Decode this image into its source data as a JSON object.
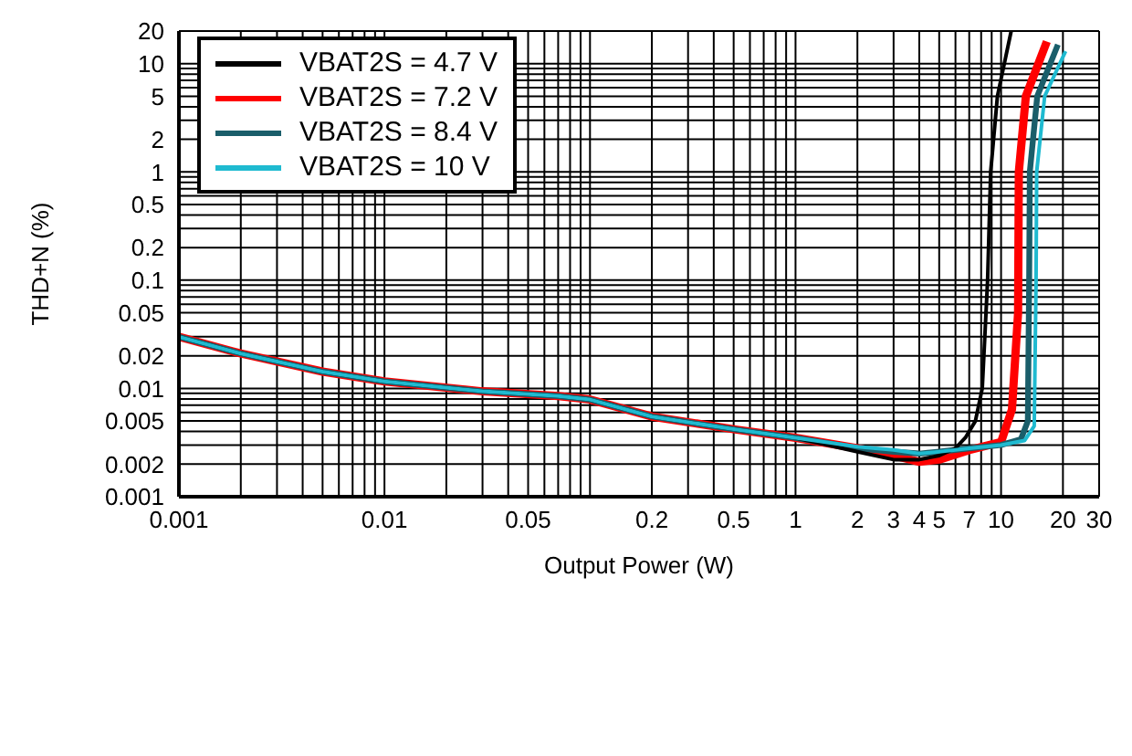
{
  "chart_data": {
    "type": "line",
    "xlabel": "Output Power (W)",
    "ylabel": "THD+N (%)",
    "log": "xy",
    "grid": true,
    "legend": "top left",
    "xlim": [
      0.001,
      30
    ],
    "xticks": [
      0.001,
      {
        "value": 0.002,
        "label": null
      },
      {
        "value": 0.003,
        "label": null
      },
      {
        "value": 0.004,
        "label": null
      },
      {
        "value": 0.005,
        "label": null
      },
      {
        "value": 0.006,
        "label": null
      },
      {
        "value": 0.007,
        "label": null
      },
      {
        "value": 0.008,
        "label": null
      },
      {
        "value": 0.009,
        "label": null
      },
      0.01,
      {
        "value": 0.02,
        "label": null
      },
      {
        "value": 0.03,
        "label": null
      },
      {
        "value": 0.04,
        "label": null
      },
      0.05,
      {
        "value": 0.06,
        "label": null
      },
      {
        "value": 0.07,
        "label": null
      },
      {
        "value": 0.08,
        "label": null
      },
      {
        "value": 0.09,
        "label": null
      },
      {
        "value": 0.1,
        "label": null
      },
      0.2,
      {
        "value": 0.3,
        "label": null
      },
      {
        "value": 0.4,
        "label": null
      },
      0.5,
      {
        "value": 0.6,
        "label": null
      },
      {
        "value": 0.7,
        "label": null
      },
      {
        "value": 0.8,
        "label": null
      },
      {
        "value": 0.9,
        "label": null
      },
      1,
      2,
      3,
      4,
      5,
      {
        "value": 6,
        "label": null
      },
      7,
      {
        "value": 8,
        "label": null
      },
      {
        "value": 9,
        "label": null
      },
      10,
      20,
      30
    ],
    "ylim": [
      0.001,
      20
    ],
    "yticks": [
      0.001,
      0.002,
      {
        "value": 0.003,
        "label": null
      },
      {
        "value": 0.004,
        "label": null
      },
      0.005,
      {
        "value": 0.006,
        "label": null
      },
      {
        "value": 0.007,
        "label": null
      },
      {
        "value": 0.008,
        "label": null
      },
      {
        "value": 0.009,
        "label": null
      },
      0.01,
      0.02,
      {
        "value": 0.03,
        "label": null
      },
      {
        "value": 0.04,
        "label": null
      },
      0.05,
      {
        "value": 0.06,
        "label": null
      },
      {
        "value": 0.07,
        "label": null
      },
      {
        "value": 0.08,
        "label": null
      },
      {
        "value": 0.09,
        "label": null
      },
      0.1,
      0.2,
      {
        "value": 0.3,
        "label": null
      },
      {
        "value": 0.4,
        "label": null
      },
      0.5,
      {
        "value": 0.6,
        "label": null
      },
      {
        "value": 0.7,
        "label": null
      },
      {
        "value": 0.8,
        "label": null
      },
      {
        "value": 0.9,
        "label": null
      },
      1,
      2,
      {
        "value": 3,
        "label": null
      },
      {
        "value": 4,
        "label": null
      },
      5,
      {
        "value": 6,
        "label": null
      },
      {
        "value": 7,
        "label": null
      },
      {
        "value": 8,
        "label": null
      },
      {
        "value": 9,
        "label": null
      },
      10,
      20
    ],
    "series": [
      {
        "name": "VBAT2S = 4.7 V",
        "color": "#000000",
        "x": [
          0.001,
          0.002,
          0.005,
          0.01,
          0.03,
          0.07,
          0.1,
          0.2,
          0.5,
          1,
          2,
          3,
          4,
          5,
          6,
          6.7,
          7.5,
          8.1,
          8.6,
          8.9,
          9.6,
          11.2
        ],
        "values": [
          0.03,
          0.021,
          0.0143,
          0.0116,
          0.0094,
          0.0085,
          0.0079,
          0.0055,
          0.0042,
          0.0035,
          0.0026,
          0.0022,
          0.0022,
          0.0024,
          0.0028,
          0.0035,
          0.005,
          0.01,
          0.1,
          1,
          5,
          20
        ]
      },
      {
        "name": "VBAT2S = 7.2 V",
        "color": "#ff0000",
        "x": [
          0.001,
          0.002,
          0.005,
          0.01,
          0.03,
          0.07,
          0.1,
          0.2,
          0.5,
          1,
          2,
          3,
          4,
          5,
          7,
          10,
          11.3,
          12.1,
          12.2,
          13.2,
          16.7
        ],
        "values": [
          0.03,
          0.021,
          0.0143,
          0.0116,
          0.0094,
          0.0085,
          0.0079,
          0.0055,
          0.0042,
          0.0035,
          0.0028,
          0.0024,
          0.0021,
          0.0022,
          0.0027,
          0.0032,
          0.0064,
          0.05,
          1,
          5,
          16
        ]
      },
      {
        "name": "VBAT2S = 8.4 V",
        "color": "#1a5e6a",
        "x": [
          0.001,
          0.002,
          0.005,
          0.01,
          0.03,
          0.07,
          0.1,
          0.2,
          0.5,
          1,
          2,
          3,
          4,
          5,
          7,
          10,
          12.5,
          13.5,
          13.7,
          13.8,
          15,
          18.9
        ],
        "values": [
          0.03,
          0.021,
          0.0143,
          0.0116,
          0.0094,
          0.0085,
          0.0079,
          0.0055,
          0.0042,
          0.0035,
          0.0028,
          0.0026,
          0.0025,
          0.0026,
          0.0028,
          0.003,
          0.0034,
          0.005,
          0.1,
          1,
          5,
          15
        ]
      },
      {
        "name": "VBAT2S = 10 V",
        "color": "#1fbad0",
        "x": [
          0.001,
          0.002,
          0.005,
          0.01,
          0.03,
          0.07,
          0.1,
          0.2,
          0.5,
          1,
          2,
          3,
          4,
          5,
          7,
          10,
          13,
          14.5,
          14.8,
          14.9,
          16.3,
          20.6
        ],
        "values": [
          0.03,
          0.021,
          0.0143,
          0.0116,
          0.0094,
          0.0085,
          0.0079,
          0.0055,
          0.0042,
          0.0035,
          0.0029,
          0.0027,
          0.0025,
          0.0026,
          0.0028,
          0.003,
          0.0033,
          0.0045,
          0.1,
          1,
          5,
          13
        ]
      }
    ]
  }
}
